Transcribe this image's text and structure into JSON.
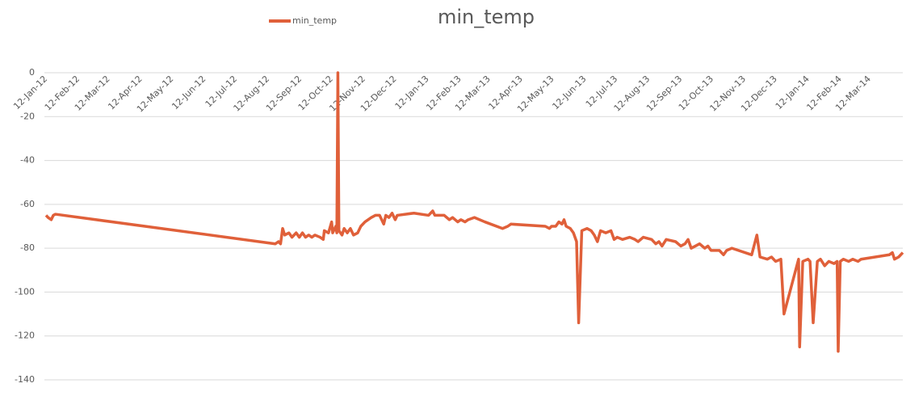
{
  "chart_data": {
    "type": "line",
    "title": "min_temp",
    "x": [
      "12-Jan-12",
      "14-Jan-12",
      "17-Jan-12",
      "19-Jan-12",
      "21-Jan-12",
      "19-Aug-12",
      "22-Aug-12",
      "24-Aug-12",
      "26-Aug-12",
      "28-Aug-12",
      "1-Sep-12",
      "4-Sep-12",
      "8-Sep-12",
      "11-Sep-12",
      "14-Sep-12",
      "17-Sep-12",
      "20-Sep-12",
      "23-Sep-12",
      "26-Sep-12",
      "1-Oct-12",
      "4-Oct-12",
      "5-Oct-12",
      "9-Oct-12",
      "12-Oct-12",
      "13-Oct-12",
      "16-Oct-12",
      "17-Oct-12",
      "18-Oct-12",
      "19-Oct-12",
      "22-Oct-12",
      "24-Oct-12",
      "27-Oct-12",
      "30-Oct-12",
      "2-Nov-12",
      "6-Nov-12",
      "9-Nov-12",
      "13-Nov-12",
      "19-Nov-12",
      "23-Nov-12",
      "27-Nov-12",
      "1-Dec-12",
      "3-Dec-12",
      "6-Dec-12",
      "9-Dec-12",
      "12-Dec-12",
      "14-Dec-12",
      "30-Dec-12",
      "13-Jan-13",
      "17-Jan-13",
      "19-Jan-13",
      "28-Jan-13",
      "2-Feb-13",
      "5-Feb-13",
      "10-Feb-13",
      "13-Feb-13",
      "17-Feb-13",
      "20-Feb-13",
      "26-Feb-13",
      "8-Mar-13",
      "25-Mar-13",
      "30-Mar-13",
      "2-Apr-13",
      "5-May-13",
      "9-May-13",
      "11-May-13",
      "15-May-13",
      "18-May-13",
      "21-May-13",
      "23-May-13",
      "25-May-13",
      "29-May-13",
      "1-Jun-13",
      "4-Jun-13",
      "6-Jun-13",
      "9-Jun-13",
      "14-Jun-13",
      "18-Jun-13",
      "21-Jun-13",
      "24-Jun-13",
      "27-Jun-13",
      "2-Jul-13",
      "7-Jul-13",
      "10-Jul-13",
      "13-Jul-13",
      "18-Jul-13",
      "25-Jul-13",
      "30-Jul-13",
      "2-Aug-13",
      "7-Aug-13",
      "15-Aug-13",
      "19-Aug-13",
      "22-Aug-13",
      "25-Aug-13",
      "29-Aug-13",
      "7-Sep-13",
      "12-Sep-13",
      "16-Sep-13",
      "19-Sep-13",
      "22-Sep-13",
      "30-Sep-13",
      "5-Oct-13",
      "8-Oct-13",
      "11-Oct-13",
      "19-Oct-13",
      "23-Oct-13",
      "26-Oct-13",
      "31-Oct-13",
      "19-Nov-13",
      "24-Nov-13",
      "27-Nov-13",
      "4-Dec-13",
      "8-Dec-13",
      "12-Dec-13",
      "17-Dec-13",
      "20-Dec-13",
      "3-Jan-14",
      "4-Jan-14",
      "7-Jan-14",
      "12-Jan-14",
      "14-Jan-14",
      "17-Jan-14",
      "21-Jan-14",
      "24-Jan-14",
      "28-Jan-14",
      "1-Feb-14",
      "6-Feb-14",
      "9-Feb-14",
      "10-Feb-14",
      "12-Feb-14",
      "15-Feb-14",
      "20-Feb-14",
      "24-Feb-14",
      "1-Mar-14",
      "4-Mar-14",
      "31-Mar-14",
      "3-Apr-14",
      "5-Apr-14",
      "9-Apr-14",
      "13-Apr-14"
    ],
    "series": [
      {
        "name": "min_temp",
        "color": "#e0603a",
        "values": [
          -65,
          -66,
          -67,
          -65,
          -64.5,
          -78,
          -77,
          -78,
          -71,
          -74,
          -73,
          -75,
          -73,
          -75,
          -73,
          -75,
          -74,
          -75,
          -74,
          -75,
          -76,
          -72,
          -73,
          -68,
          -73,
          -70,
          -73,
          0,
          -72,
          -74,
          -71,
          -73,
          -71,
          -74,
          -73,
          -70,
          -68,
          -66,
          -65,
          -65,
          -69,
          -65,
          -66,
          -64,
          -67,
          -65,
          -64,
          -65,
          -63,
          -65,
          -65,
          -67,
          -66,
          -68,
          -67,
          -68,
          -67,
          -66,
          -68,
          -71,
          -70,
          -69,
          -70,
          -71,
          -70,
          -70,
          -68,
          -69,
          -67,
          -70,
          -71,
          -73,
          -77,
          -114,
          -72,
          -71,
          -72,
          -74,
          -77,
          -72,
          -73,
          -72,
          -76,
          -75,
          -76,
          -75,
          -76,
          -77,
          -75,
          -76,
          -78,
          -77,
          -79,
          -76,
          -77,
          -79,
          -78,
          -76,
          -80,
          -78,
          -80,
          -79,
          -81,
          -81,
          -83,
          -81,
          -80,
          -83,
          -74,
          -84,
          -85,
          -84,
          -86,
          -85,
          -110,
          -85,
          -125,
          -86,
          -85,
          -86,
          -114,
          -86,
          -85,
          -88,
          -86,
          -87,
          -86,
          -127,
          -86,
          -85,
          -86,
          -85,
          -86,
          -85,
          -83,
          -82,
          -85,
          -84,
          -82
        ]
      }
    ],
    "xlim": [
      "12-Jan-12",
      "13-Apr-14"
    ],
    "xticks": [
      "12-Jan-12",
      "12-Feb-12",
      "12-Mar-12",
      "12-Apr-12",
      "12-May-12",
      "12-Jun-12",
      "12-Jul-12",
      "12-Aug-12",
      "12-Sep-12",
      "12-Oct-12",
      "12-Nov-12",
      "12-Dec-12",
      "12-Jan-13",
      "12-Feb-13",
      "12-Mar-13",
      "12-Apr-13",
      "12-May-13",
      "12-Jun-13",
      "12-Jul-13",
      "12-Aug-13",
      "12-Sep-13",
      "12-Oct-13",
      "12-Nov-13",
      "12-Dec-13",
      "12-Jan-14",
      "12-Feb-14",
      "12-Mar-14"
    ],
    "ylim": [
      -140,
      0
    ],
    "yticks": [
      0,
      -20,
      -40,
      -60,
      -80,
      -100,
      -120,
      -140
    ],
    "grid": true
  }
}
